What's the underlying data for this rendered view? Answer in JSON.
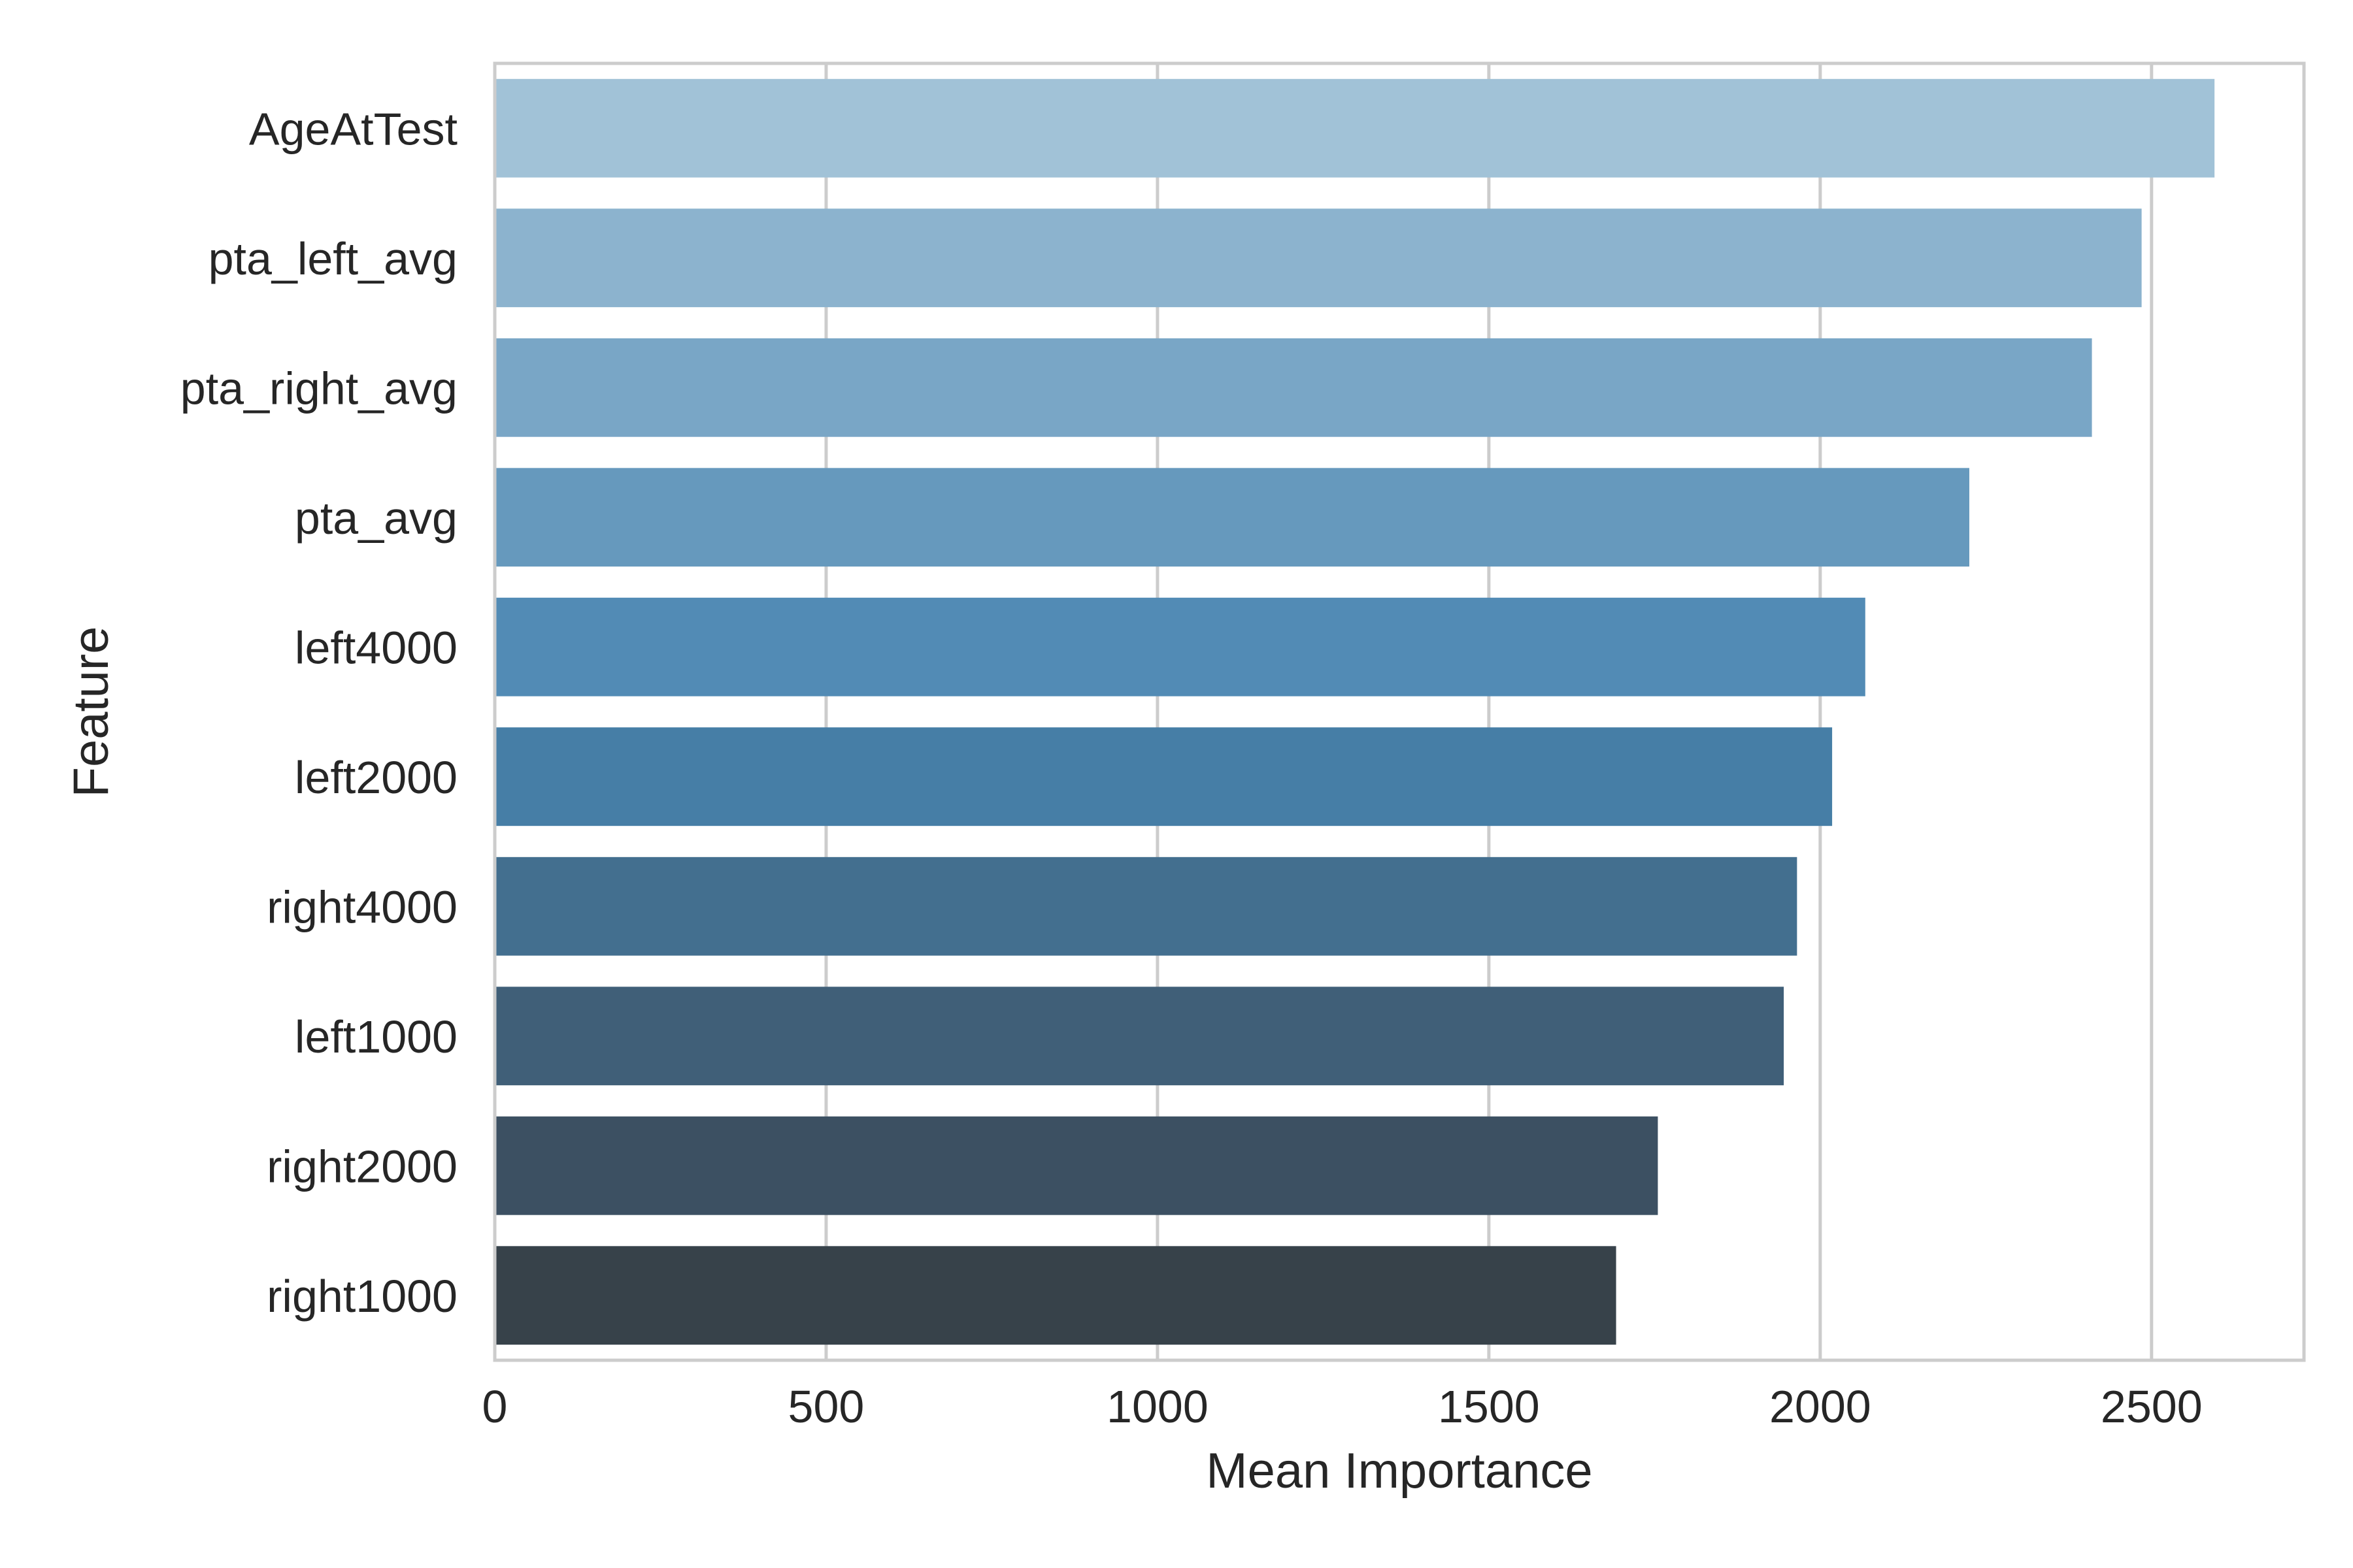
{
  "chart_data": {
    "type": "bar",
    "orientation": "horizontal",
    "title": "",
    "xlabel": "Mean Importance",
    "ylabel": "Feature",
    "categories": [
      "AgeAtTest",
      "pta_left_avg",
      "pta_right_avg",
      "pta_avg",
      "left4000",
      "left2000",
      "right4000",
      "left1000",
      "right2000",
      "right1000"
    ],
    "values": [
      2595,
      2485,
      2410,
      2225,
      2068,
      2018,
      1965,
      1945,
      1755,
      1692
    ],
    "colors": [
      "#a1c2d7",
      "#8cb3ce",
      "#79a6c6",
      "#6699bd",
      "#528bb5",
      "#467ea6",
      "#436f8f",
      "#405f78",
      "#3c5062",
      "#37424a"
    ],
    "xlim": [
      0,
      2730
    ],
    "xticks": [
      0,
      500,
      1000,
      1500,
      2000,
      2500
    ],
    "xtick_labels": [
      "0",
      "500",
      "1000",
      "1500",
      "2000",
      "2500"
    ],
    "grid": true,
    "legend": "none"
  }
}
